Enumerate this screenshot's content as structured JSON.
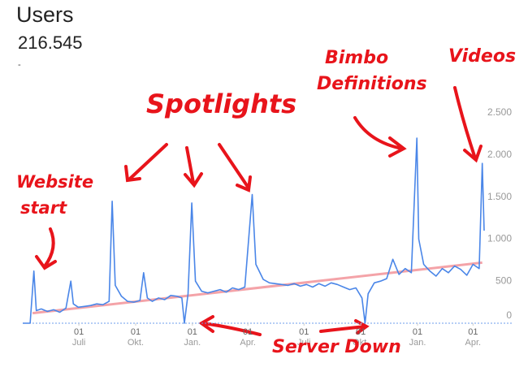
{
  "chart_data": {
    "type": "line",
    "title": "Users",
    "total": "216.545",
    "delta": "-",
    "x": [
      0,
      12,
      18,
      22,
      30,
      40,
      50,
      60,
      70,
      78,
      82,
      90,
      100,
      110,
      120,
      130,
      140,
      145,
      150,
      160,
      170,
      180,
      190,
      196,
      202,
      210,
      220,
      230,
      240,
      250,
      258,
      262,
      268,
      274,
      280,
      290,
      300,
      310,
      320,
      330,
      340,
      350,
      360,
      372,
      378,
      390,
      400,
      410,
      420,
      430,
      440,
      450,
      460,
      470,
      480,
      490,
      500,
      510,
      520,
      530,
      540,
      550,
      555,
      560,
      570,
      580,
      590,
      600,
      610,
      620,
      630,
      639,
      642,
      650,
      660,
      670,
      680,
      690,
      700,
      710,
      720,
      730,
      740,
      745,
      748
    ],
    "series": [
      {
        "name": "Users",
        "color": "#4a86e8",
        "values": [
          0,
          0,
          620,
          150,
          170,
          140,
          160,
          130,
          180,
          500,
          230,
          190,
          200,
          210,
          230,
          220,
          260,
          1450,
          450,
          320,
          260,
          250,
          270,
          600,
          300,
          260,
          300,
          280,
          330,
          320,
          300,
          0,
          350,
          1430,
          500,
          380,
          360,
          380,
          400,
          370,
          420,
          400,
          430,
          1530,
          700,
          520,
          480,
          470,
          460,
          450,
          470,
          440,
          460,
          430,
          470,
          440,
          480,
          460,
          430,
          400,
          420,
          300,
          0,
          350,
          480,
          500,
          530,
          760,
          580,
          650,
          600,
          2200,
          1000,
          700,
          620,
          560,
          650,
          600,
          680,
          640,
          570,
          700,
          650,
          1900,
          1100
        ]
      }
    ],
    "trend": {
      "color": "#f4a3a8",
      "x": [
        16,
        745
      ],
      "values": [
        120,
        720
      ]
    },
    "xlim": [
      0,
      748
    ],
    "xticks": [
      {
        "value": 91,
        "label": "01",
        "month": "Juli"
      },
      {
        "value": 183,
        "label": "01",
        "month": "Okt."
      },
      {
        "value": 275,
        "label": "01",
        "month": "Jan."
      },
      {
        "value": 365,
        "label": "01",
        "month": "Apr."
      },
      {
        "value": 456,
        "label": "01",
        "month": "Juli"
      },
      {
        "value": 548,
        "label": "01",
        "month": "Okt."
      },
      {
        "value": 640,
        "label": "01",
        "month": "Jan."
      },
      {
        "value": 730,
        "label": "01",
        "month": "Apr."
      }
    ],
    "ylim": [
      0,
      2500
    ],
    "yticks": [
      0,
      500,
      {
        "value": 1000,
        "label": "1.000"
      },
      {
        "value": 1500,
        "label": "1.500"
      },
      {
        "value": 2000,
        "label": "2.000"
      },
      {
        "value": 2500,
        "label": "2.500"
      }
    ],
    "grid": false,
    "annotations": [
      {
        "lines": [
          "Website",
          "start"
        ]
      },
      {
        "lines": [
          "Spotlights"
        ]
      },
      {
        "lines": [
          "Bimbo",
          "Definitions"
        ]
      },
      {
        "lines": [
          "Videos"
        ]
      },
      {
        "lines": [
          "Server Down"
        ]
      }
    ]
  }
}
